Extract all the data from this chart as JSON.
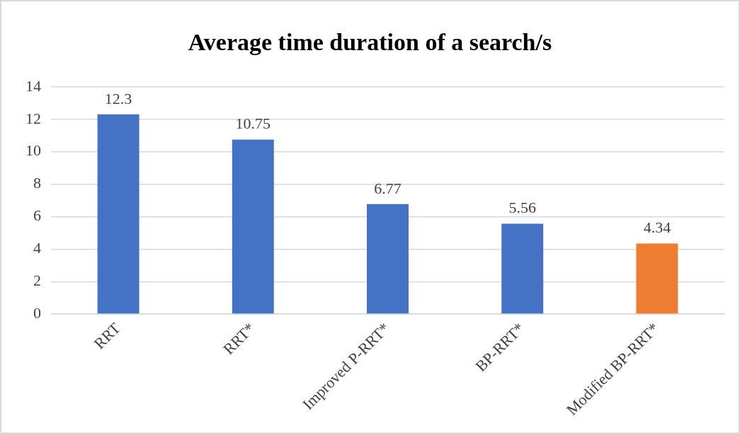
{
  "chart_data": {
    "type": "bar",
    "title": "Average time duration of a search/s",
    "categories": [
      "RRT",
      "RRT*",
      "Improved P-RRT*",
      "BP-RRT*",
      "Modified BP-RRT*"
    ],
    "values": [
      12.3,
      10.75,
      6.77,
      5.56,
      4.34
    ],
    "colors": [
      "#4472c4",
      "#4472c4",
      "#4472c4",
      "#4472c4",
      "#ed7d31"
    ],
    "ylim": [
      0,
      14
    ],
    "yticks": [
      0,
      2,
      4,
      6,
      8,
      10,
      12,
      14
    ],
    "grid": "y",
    "data_labels": true,
    "legend": false
  }
}
